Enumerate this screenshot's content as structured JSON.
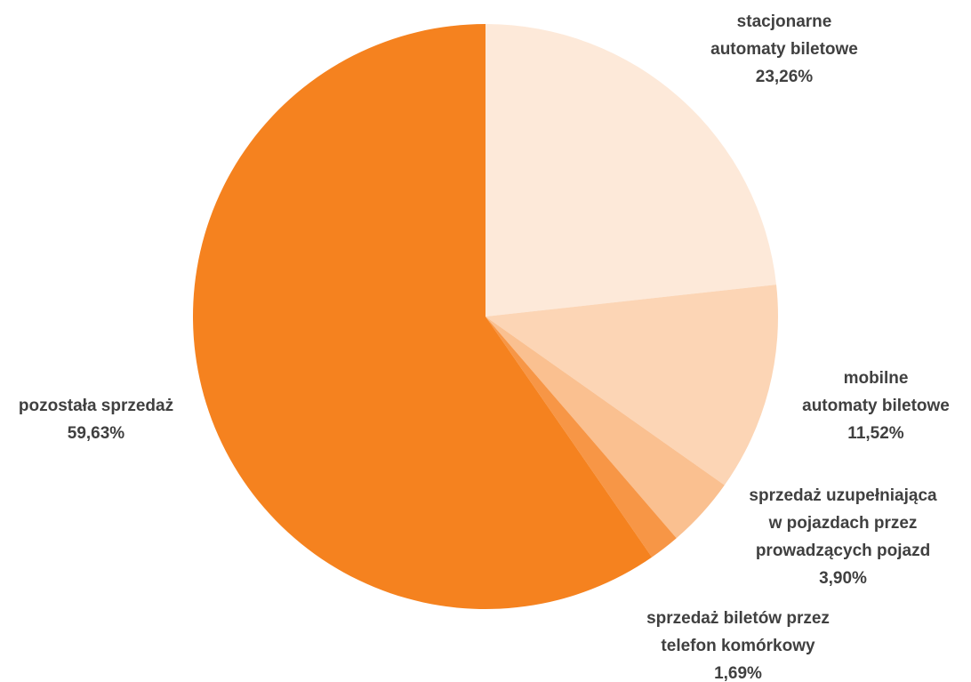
{
  "chart_data": {
    "type": "pie",
    "title": "",
    "start_angle_deg": 0,
    "direction": "clockwise",
    "slices": [
      {
        "label_lines": [
          "stacjonarne",
          "automaty biletowe"
        ],
        "percent_label": "23,26%",
        "value": 23.26,
        "color": "#FDE9D9"
      },
      {
        "label_lines": [
          "mobilne",
          "automaty biletowe"
        ],
        "percent_label": "11,52%",
        "value": 11.52,
        "color": "#FCD5B5"
      },
      {
        "label_lines": [
          "sprzedaż uzupełniająca",
          "w pojazdach przez",
          "prowadzących pojazd"
        ],
        "percent_label": "3,90%",
        "value": 3.9,
        "color": "#FAC090"
      },
      {
        "label_lines": [
          "sprzedaż biletów przez",
          "telefon komórkowy"
        ],
        "percent_label": "1,69%",
        "value": 1.69,
        "color": "#F79646"
      },
      {
        "label_lines": [
          "pozostała sprzedaż"
        ],
        "percent_label": "59,63%",
        "value": 59.63,
        "color": "#F5821F"
      }
    ]
  }
}
